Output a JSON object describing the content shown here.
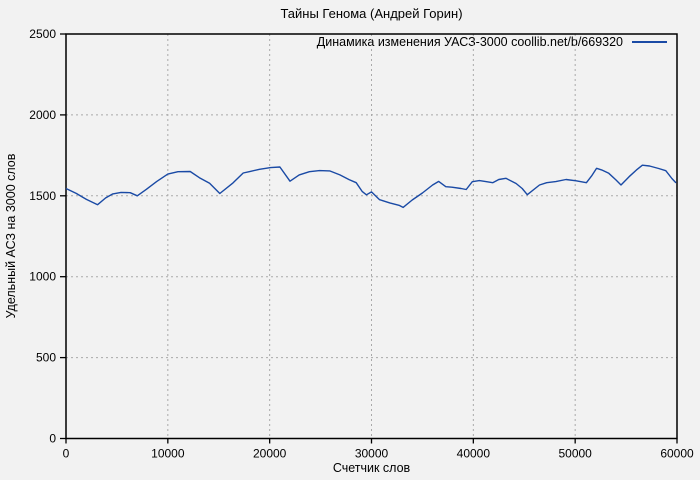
{
  "colors": {
    "background": "#f2f2f2",
    "line": "#1a4aa5",
    "grid": "#a9a9a9",
    "axis": "#000000"
  },
  "chart_data": {
    "type": "line",
    "title": "Тайны Генома (Андрей Горин)",
    "xlabel": "Счетчик слов",
    "ylabel": "Удельный АСЗ на 3000 слов",
    "xlim": [
      0,
      60000
    ],
    "ylim": [
      0,
      2500
    ],
    "xticks": [
      0,
      10000,
      20000,
      30000,
      40000,
      50000,
      60000
    ],
    "yticks": [
      0,
      500,
      1000,
      1500,
      2000,
      2500
    ],
    "grid": true,
    "grid_style": "dashed",
    "legend_position": "top-right-inside",
    "series": [
      {
        "name": "Динамика изменения УАСЗ-3000 coollib.net/b/669320",
        "color": "#1a4aa5",
        "points": [
          [
            0,
            1545
          ],
          [
            1000,
            1515
          ],
          [
            2000,
            1478
          ],
          [
            3100,
            1445
          ],
          [
            3900,
            1487
          ],
          [
            4600,
            1512
          ],
          [
            5400,
            1521
          ],
          [
            6300,
            1519
          ],
          [
            7000,
            1500
          ],
          [
            7900,
            1540
          ],
          [
            8900,
            1588
          ],
          [
            10000,
            1634
          ],
          [
            11000,
            1649
          ],
          [
            12200,
            1650
          ],
          [
            13100,
            1612
          ],
          [
            14100,
            1578
          ],
          [
            15100,
            1514
          ],
          [
            16400,
            1580
          ],
          [
            17400,
            1641
          ],
          [
            18100,
            1651
          ],
          [
            19000,
            1664
          ],
          [
            20100,
            1674
          ],
          [
            21000,
            1678
          ],
          [
            22000,
            1590
          ],
          [
            22900,
            1629
          ],
          [
            23900,
            1649
          ],
          [
            24900,
            1656
          ],
          [
            25900,
            1654
          ],
          [
            26900,
            1629
          ],
          [
            27800,
            1600
          ],
          [
            28500,
            1581
          ],
          [
            29100,
            1526
          ],
          [
            29500,
            1506
          ],
          [
            30000,
            1524
          ],
          [
            30800,
            1476
          ],
          [
            31800,
            1456
          ],
          [
            32700,
            1441
          ],
          [
            33100,
            1428
          ],
          [
            34000,
            1474
          ],
          [
            35000,
            1517
          ],
          [
            36000,
            1567
          ],
          [
            36600,
            1589
          ],
          [
            37300,
            1556
          ],
          [
            37900,
            1553
          ],
          [
            38800,
            1545
          ],
          [
            39300,
            1539
          ],
          [
            39900,
            1587
          ],
          [
            40600,
            1594
          ],
          [
            41300,
            1587
          ],
          [
            41900,
            1581
          ],
          [
            42500,
            1601
          ],
          [
            43200,
            1608
          ],
          [
            44200,
            1576
          ],
          [
            44800,
            1545
          ],
          [
            45300,
            1507
          ],
          [
            46500,
            1567
          ],
          [
            47200,
            1581
          ],
          [
            48100,
            1588
          ],
          [
            49100,
            1601
          ],
          [
            50100,
            1593
          ],
          [
            51100,
            1581
          ],
          [
            51600,
            1622
          ],
          [
            52100,
            1670
          ],
          [
            52600,
            1660
          ],
          [
            53300,
            1639
          ],
          [
            54000,
            1598
          ],
          [
            54500,
            1567
          ],
          [
            55300,
            1618
          ],
          [
            56000,
            1659
          ],
          [
            56600,
            1689
          ],
          [
            57300,
            1684
          ],
          [
            58200,
            1669
          ],
          [
            58900,
            1655
          ],
          [
            59500,
            1607
          ],
          [
            59900,
            1580
          ]
        ]
      }
    ]
  }
}
